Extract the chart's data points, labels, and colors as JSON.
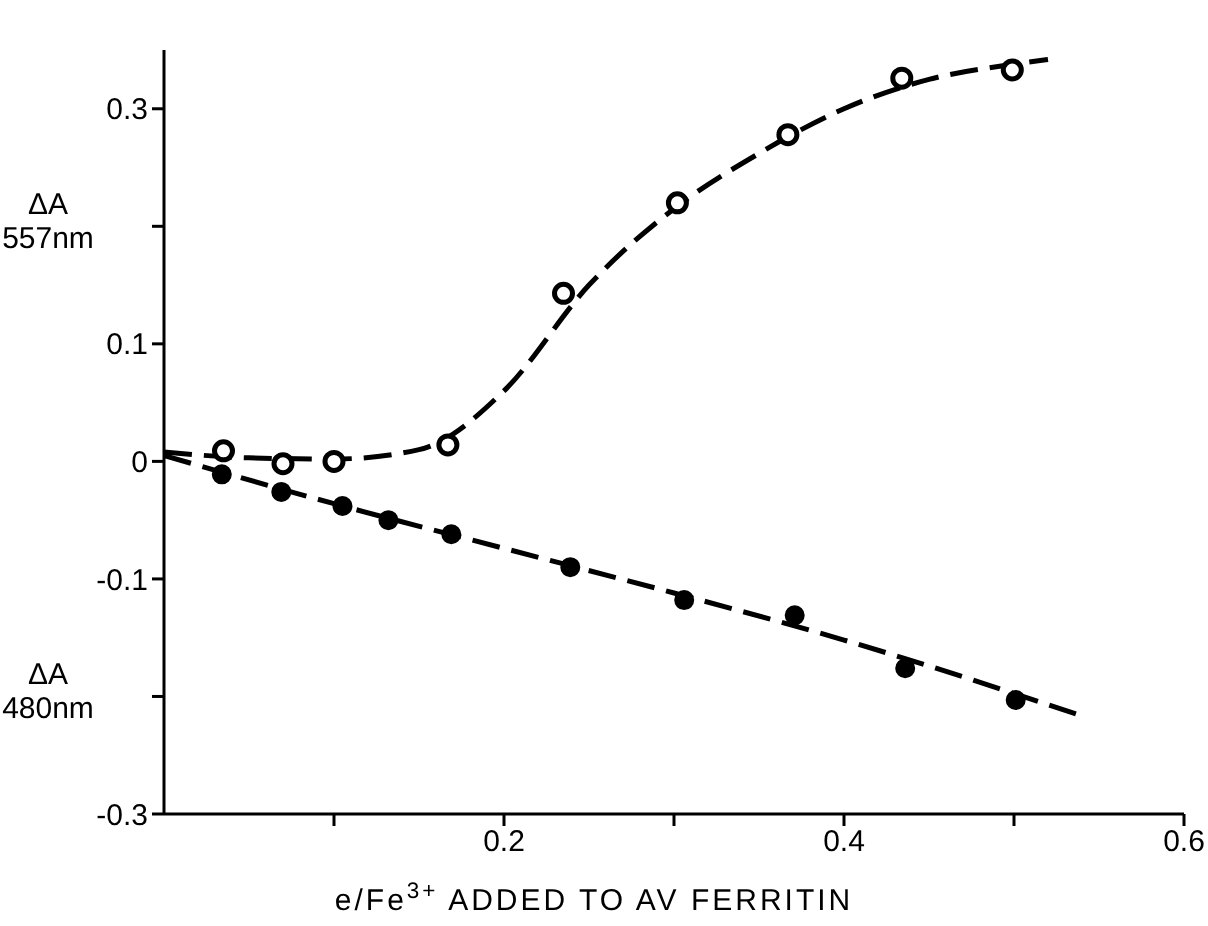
{
  "chart_data": {
    "type": "scatter",
    "xlabel": "e/Fe$^{3+}$ ADDED TO AV FERRITIN",
    "ylabel": "ΔA 557nm",
    "annotations": [
      "ΔA 480nm"
    ],
    "xlim": [
      0,
      0.6
    ],
    "xticks": [
      {
        "value": 0.1,
        "label": null
      },
      0.2,
      {
        "value": 0.3,
        "label": null
      },
      0.4,
      {
        "value": 0.5,
        "label": null
      },
      0.6
    ],
    "ylim": [
      -0.3,
      0.35
    ],
    "yticks": [
      -0.3,
      {
        "value": -0.2,
        "label": null
      },
      -0.1,
      0,
      0.1,
      {
        "value": 0.2,
        "label": null
      },
      0.3
    ],
    "grid": false,
    "marker": "circle",
    "series": [
      {
        "type": "line",
        "line_style": "dashed",
        "marker": "none",
        "color": "#000000",
        "x": [
          0,
          0.05,
          0.1,
          0.15,
          0.2,
          0.25,
          0.3,
          0.35,
          0.4,
          0.45,
          0.5,
          0.52
        ],
        "values": [
          0.008,
          0.003,
          0.002,
          0.01,
          0.06,
          0.15,
          0.215,
          0.262,
          0.3,
          0.325,
          0.338,
          0.342
        ]
      },
      {
        "type": "line",
        "line_style": "dashed",
        "marker": "none",
        "color": "#000000",
        "x": [
          0,
          0.1,
          0.2,
          0.3,
          0.4,
          0.539
        ],
        "values": [
          0.005,
          -0.036,
          -0.074,
          -0.112,
          -0.152,
          -0.216
        ]
      },
      {
        "color": "#000000",
        "x": [
          0.035,
          0.07,
          0.1,
          0.167,
          0.235,
          0.302,
          0.367,
          0.434,
          0.499
        ],
        "values": [
          0.009,
          -0.002,
          0,
          0.014,
          0.143,
          0.22,
          0.278,
          0.326,
          0.333
        ]
      },
      {
        "color": "#000000",
        "x": [
          0.034,
          0.069,
          0.105,
          0.132,
          0.169,
          0.239,
          0.306,
          0.371,
          0.436,
          0.501
        ],
        "values": [
          -0.011,
          -0.026,
          -0.038,
          -0.05,
          -0.062,
          -0.09,
          -0.118,
          -0.131,
          -0.176,
          -0.203
        ]
      }
    ]
  }
}
